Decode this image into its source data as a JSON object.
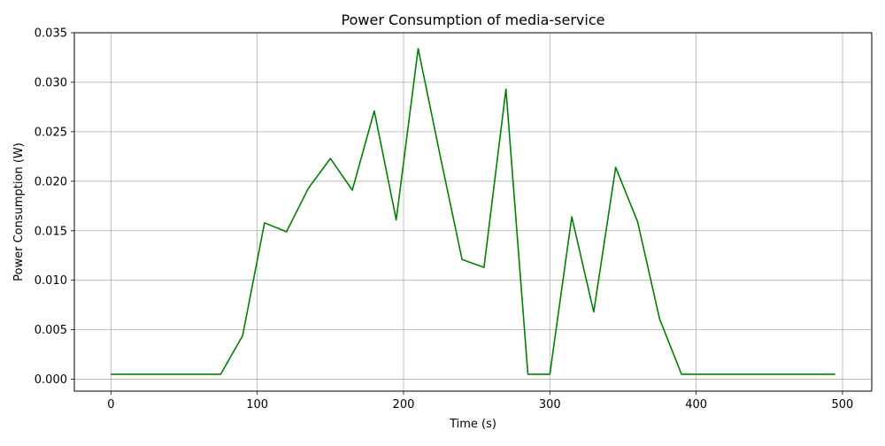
{
  "chart_data": {
    "type": "line",
    "title": "Power Consumption of media-service",
    "xlabel": "Time (s)",
    "ylabel": "Power Consumption (W)",
    "xlim": [
      -25,
      520
    ],
    "ylim": [
      -0.0012,
      0.035
    ],
    "x_ticks": [
      0,
      100,
      200,
      300,
      400,
      500
    ],
    "x_tick_labels": [
      "0",
      "100",
      "200",
      "300",
      "400",
      "500"
    ],
    "y_ticks": [
      0.0,
      0.005,
      0.01,
      0.015,
      0.02,
      0.025,
      0.03,
      0.035
    ],
    "y_tick_labels": [
      "0.000",
      "0.005",
      "0.010",
      "0.015",
      "0.020",
      "0.025",
      "0.030",
      "0.035"
    ],
    "grid": true,
    "series": [
      {
        "color": "#008000",
        "x": [
          0,
          15,
          30,
          45,
          60,
          75,
          90,
          105,
          120,
          135,
          150,
          165,
          180,
          195,
          210,
          225,
          240,
          255,
          270,
          285,
          300,
          315,
          330,
          345,
          360,
          375,
          390,
          405,
          420,
          435,
          450,
          465,
          480,
          495
        ],
        "y": [
          0.0005,
          0.0005,
          0.0005,
          0.0005,
          0.0005,
          0.0005,
          0.0044,
          0.0158,
          0.0149,
          0.0193,
          0.0223,
          0.0191,
          0.0271,
          0.0161,
          0.0334,
          0.0226,
          0.0121,
          0.0113,
          0.0293,
          0.0005,
          0.0005,
          0.0164,
          0.0068,
          0.0214,
          0.0159,
          0.0061,
          0.0005,
          0.0005,
          0.0005,
          0.0005,
          0.0005,
          0.0005,
          0.0005,
          0.0005
        ]
      }
    ]
  }
}
